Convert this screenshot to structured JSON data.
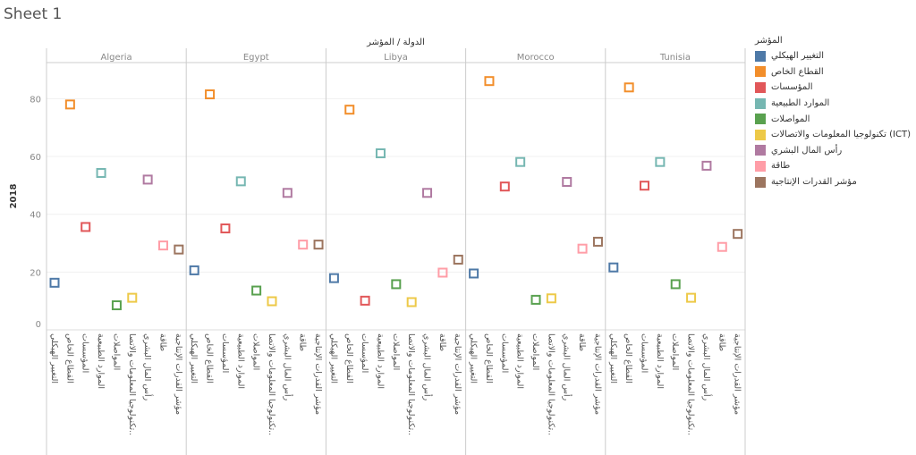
{
  "sheet_title": "Sheet 1",
  "chart_data": {
    "type": "scatter",
    "column_header": "الدولة / المؤشر",
    "ylabel": "2018",
    "ylim": [
      0,
      92.5
    ],
    "yticks": [
      0,
      20,
      40,
      60,
      80
    ],
    "grid": true,
    "legend_placement": "right",
    "legend_title": "المؤشر",
    "mark": "hollow square",
    "countries": [
      "Algeria",
      "Egypt",
      "Libya",
      "Morocco",
      "Tunisia"
    ],
    "indicators": [
      "التغيير الهيكلي",
      "القطاع الخاص",
      "المؤسسات",
      "الموارد الطبيعية",
      "المواصلات",
      "تكنولوجيا المعلومات والاتصالات (ICT)",
      "رأس المال البشري",
      "طاقة",
      "مؤشر القدرات الإنتاجية"
    ],
    "axis_labels": [
      "التغيير الهيكلي",
      "القطاع الخاص",
      "المؤسسات",
      "الموارد الطبيعية",
      "المواصلات",
      "تكنولوجيا المعلومات والاتصا..",
      "رأس المال البشري",
      "طاقة",
      "مؤشر القدرات الإنتاجية"
    ],
    "colors": [
      "#4e79a7",
      "#f28e2b",
      "#e15759",
      "#76b7b2",
      "#59a14f",
      "#edc948",
      "#b07aa1",
      "#ff9da7",
      "#9c755f"
    ],
    "series": [
      {
        "country": "Algeria",
        "values": [
          16.3,
          78.0,
          35.6,
          54.3,
          8.5,
          11.1,
          52.0,
          29.2,
          27.8
        ]
      },
      {
        "country": "Egypt",
        "values": [
          20.6,
          81.5,
          35.1,
          51.4,
          13.6,
          9.9,
          47.4,
          29.5,
          29.5
        ]
      },
      {
        "country": "Libya",
        "values": [
          17.9,
          76.2,
          10.1,
          61.1,
          15.8,
          9.6,
          47.4,
          19.8,
          24.3
        ]
      },
      {
        "country": "Morocco",
        "values": [
          19.5,
          86.1,
          49.6,
          58.1,
          10.4,
          10.9,
          51.2,
          28.1,
          30.5
        ]
      },
      {
        "country": "Tunisia",
        "values": [
          21.6,
          83.9,
          49.9,
          58.1,
          15.8,
          11.1,
          56.8,
          28.7,
          33.2
        ]
      }
    ]
  }
}
